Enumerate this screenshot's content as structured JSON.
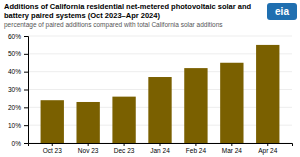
{
  "chart_data": {
    "type": "bar",
    "title": "Additions of California residential net-metered photovoltaic solar and battery paired systems (Oct 2023–Apr 2024)",
    "subtitle": "percentage of paired additions compared with total California solar additions",
    "annotations": [
      {
        "text": "eia",
        "color": "#1f6fb0"
      }
    ],
    "categories": [
      "Oct 23",
      "Nov 23",
      "Dec 23",
      "Jan 24",
      "Feb 24",
      "Mar 24",
      "Apr 24"
    ],
    "values": [
      24,
      23,
      26,
      37,
      42,
      45,
      55
    ],
    "color": "#7a6000",
    "ylim": [
      0,
      60
    ],
    "yticks": [
      {
        "value": 0,
        "label": "0%"
      },
      {
        "value": 10,
        "label": "10%"
      },
      {
        "value": 20,
        "label": "20%"
      },
      {
        "value": 30,
        "label": "30%"
      },
      {
        "value": 40,
        "label": "40%"
      },
      {
        "value": 50,
        "label": "50%"
      },
      {
        "value": 60,
        "label": "60%"
      }
    ],
    "grid": true
  }
}
